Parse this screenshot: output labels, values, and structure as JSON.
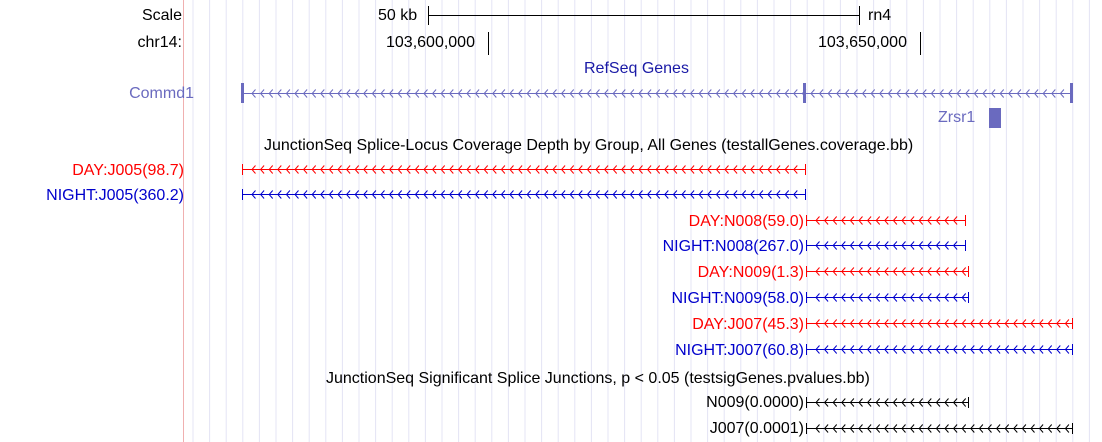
{
  "ruler": {
    "scale_label": "Scale",
    "scale_value": "50 kb",
    "assembly": "rn4",
    "chrom_label": "chr14:",
    "pos1": "103,600,000",
    "pos2": "103,650,000"
  },
  "refseq": {
    "title": "RefSeq Genes",
    "genes": [
      {
        "name": "Commd1",
        "strand": "-"
      },
      {
        "name": "Zrsr1",
        "strand": "+"
      }
    ]
  },
  "coverage": {
    "title": "JunctionSeq Splice-Locus Coverage Depth by Group, All Genes (testallGenes.coverage.bb)",
    "features": [
      {
        "label": "DAY:J005(98.7)",
        "group": "DAY"
      },
      {
        "label": "NIGHT:J005(360.2)",
        "group": "NIGHT"
      },
      {
        "label": "DAY:N008(59.0)",
        "group": "DAY"
      },
      {
        "label": "NIGHT:N008(267.0)",
        "group": "NIGHT"
      },
      {
        "label": "DAY:N009(1.3)",
        "group": "DAY"
      },
      {
        "label": "NIGHT:N009(58.0)",
        "group": "NIGHT"
      },
      {
        "label": "DAY:J007(45.3)",
        "group": "DAY"
      },
      {
        "label": "NIGHT:J007(60.8)",
        "group": "NIGHT"
      }
    ]
  },
  "significant": {
    "title": "JunctionSeq Significant Splice Junctions, p < 0.05 (testsigGenes.pvalues.bb)",
    "features": [
      {
        "label": "N009(0.0000)"
      },
      {
        "label": "J007(0.0001)"
      }
    ]
  },
  "colors": {
    "day": "#ff0000",
    "night": "#0000cc",
    "gene": "#6a6abf",
    "grid": "#e4e4f4",
    "guide": "#f0b0b0",
    "black": "#000000"
  }
}
